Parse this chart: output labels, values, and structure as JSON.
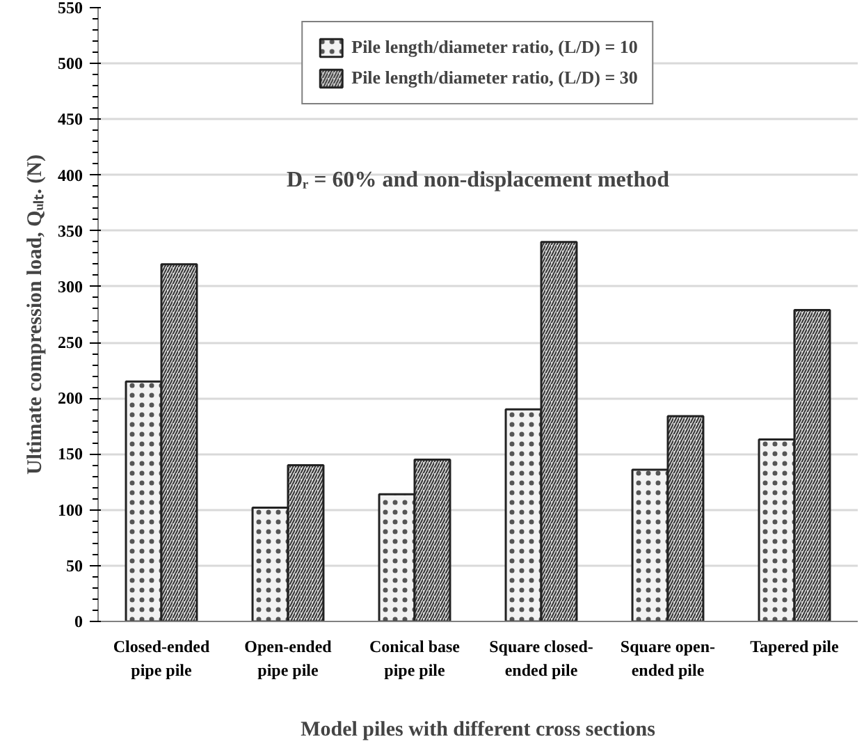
{
  "chart_data": {
    "type": "bar",
    "xlabel": "Model piles with different cross sections",
    "ylabel": "Ultimate compression load, Qᵤₗₜ. (N)",
    "categories": [
      "Closed-ended\npipe pile",
      "Open-ended\npipe pile",
      "Conical base\npipe pile",
      "Square closed-\nended pile",
      "Square open-\nended pile",
      "Tapered pile"
    ],
    "series": [
      {
        "name": "Pile length/diameter ratio, (L/D) = 10",
        "color": "#f2f2f2",
        "values": [
          215,
          102,
          114,
          190,
          136,
          163
        ]
      },
      {
        "name": "Pile length/diameter ratio, (L/D) = 30",
        "color": "#d9d9d9",
        "values": [
          320,
          140,
          145,
          340,
          184,
          279
        ]
      }
    ],
    "ylim": [
      0,
      550
    ],
    "yticks": [
      0,
      50,
      100,
      150,
      200,
      250,
      300,
      350,
      400,
      450,
      500,
      550
    ],
    "grid": "y",
    "legend": "top",
    "annotations": [
      "Dᵣ = 60% and non-displacement method"
    ]
  }
}
